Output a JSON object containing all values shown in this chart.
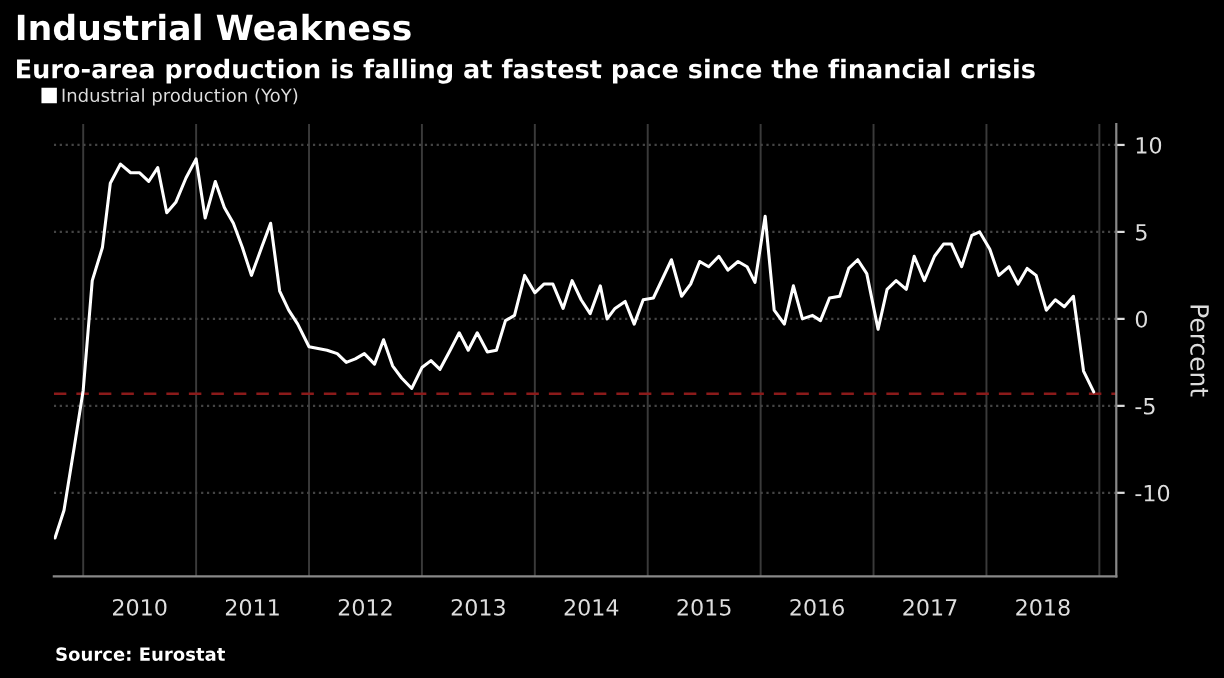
{
  "chart_data": {
    "type": "line",
    "title": "Industrial Weakness",
    "subtitle": "Euro-area production is falling at fastest pace since the financial crisis",
    "ylabel": "Percent",
    "annotations": [
      "Source: Eurostat"
    ],
    "series": [
      {
        "name": "Industrial production (YoY)",
        "color": "#ffffff",
        "x": [
          2009.75,
          2009.83,
          2009.92,
          2010.0,
          2010.08,
          2010.17,
          2010.24,
          2010.33,
          2010.42,
          2010.5,
          2010.58,
          2010.66,
          2010.74,
          2010.82,
          2010.91,
          2011.0,
          2011.08,
          2011.17,
          2011.25,
          2011.33,
          2011.41,
          2011.49,
          2011.58,
          2011.66,
          2011.74,
          2011.82,
          2011.9,
          2012.0,
          2012.08,
          2012.16,
          2012.25,
          2012.33,
          2012.41,
          2012.49,
          2012.58,
          2012.66,
          2012.74,
          2012.82,
          2012.91,
          2013.0,
          2013.08,
          2013.16,
          2013.25,
          2013.33,
          2013.41,
          2013.49,
          2013.58,
          2013.66,
          2013.74,
          2013.82,
          2013.91,
          2014.0,
          2014.08,
          2014.16,
          2014.25,
          2014.33,
          2014.41,
          2014.49,
          2014.58,
          2014.64,
          2014.71,
          2014.8,
          2014.88,
          2014.96,
          2015.05,
          2015.21,
          2015.3,
          2015.38,
          2015.46,
          2015.54,
          2015.63,
          2015.71,
          2015.8,
          2015.88,
          2015.95,
          2016.04,
          2016.12,
          2016.21,
          2016.29,
          2016.37,
          2016.46,
          2016.53,
          2016.61,
          2016.7,
          2016.78,
          2016.86,
          2016.94,
          2017.04,
          2017.12,
          2017.2,
          2017.29,
          2017.36,
          2017.45,
          2017.54,
          2017.62,
          2017.69,
          2017.78,
          2017.87,
          2017.94,
          2018.03,
          2018.11,
          2018.2,
          2018.28,
          2018.36,
          2018.44,
          2018.53,
          2018.61,
          2018.69,
          2018.77,
          2018.86,
          2018.95
        ],
        "values": [
          -12.6,
          -11.0,
          -7.4,
          -4.1,
          2.2,
          4.1,
          7.8,
          8.9,
          8.4,
          8.4,
          7.9,
          8.7,
          6.1,
          6.7,
          8.1,
          9.2,
          5.8,
          7.9,
          6.4,
          5.5,
          4.1,
          2.5,
          4.1,
          5.5,
          1.6,
          0.5,
          -0.3,
          -1.6,
          -1.7,
          -1.8,
          -2.0,
          -2.5,
          -2.3,
          -2.0,
          -2.6,
          -1.2,
          -2.7,
          -3.4,
          -4.0,
          -2.8,
          -2.4,
          -2.9,
          -1.8,
          -0.8,
          -1.8,
          -0.8,
          -1.9,
          -1.8,
          -0.1,
          0.2,
          2.5,
          1.5,
          2.0,
          2.0,
          0.6,
          2.2,
          1.1,
          0.3,
          1.9,
          0.0,
          0.6,
          1.0,
          -0.3,
          1.1,
          1.2,
          3.4,
          1.3,
          2.0,
          3.3,
          3.0,
          3.6,
          2.8,
          3.3,
          3.0,
          2.1,
          5.9,
          0.5,
          -0.3,
          1.9,
          0.0,
          0.2,
          -0.1,
          1.2,
          1.3,
          2.9,
          3.4,
          2.6,
          -0.6,
          1.7,
          2.2,
          1.7,
          3.6,
          2.2,
          3.6,
          4.3,
          4.3,
          3.0,
          4.8,
          5.0,
          4.0,
          2.5,
          3.0,
          2.0,
          2.9,
          2.5,
          0.5,
          1.1,
          0.7,
          1.3,
          -3.0,
          -4.2
        ]
      }
    ],
    "ref_lines": [
      {
        "axis": "y",
        "value": -4.3,
        "color": "#8b1a1a",
        "line_style": "dashed"
      }
    ],
    "xlim": [
      2009.74,
      2019.15
    ],
    "ylim": [
      -14.8,
      11.2
    ],
    "xticks": [
      {
        "value": 2010,
        "label": null
      },
      {
        "value": 2010.5,
        "label": "2010"
      },
      {
        "value": 2011,
        "label": null
      },
      {
        "value": 2011.5,
        "label": "2011"
      },
      {
        "value": 2012,
        "label": null
      },
      {
        "value": 2012.5,
        "label": "2012"
      },
      {
        "value": 2013,
        "label": null
      },
      {
        "value": 2013.5,
        "label": "2013"
      },
      {
        "value": 2014,
        "label": null
      },
      {
        "value": 2014.5,
        "label": "2014"
      },
      {
        "value": 2015,
        "label": null
      },
      {
        "value": 2015.5,
        "label": "2015"
      },
      {
        "value": 2016,
        "label": null
      },
      {
        "value": 2016.5,
        "label": "2016"
      },
      {
        "value": 2017,
        "label": null
      },
      {
        "value": 2017.5,
        "label": "2017"
      },
      {
        "value": 2018,
        "label": null
      },
      {
        "value": 2018.5,
        "label": "2018"
      },
      {
        "value": 2019,
        "label": null
      }
    ],
    "yticks": [
      -10,
      -5,
      0,
      5,
      10
    ],
    "grid": true,
    "legend": "top left",
    "line_style": "solid",
    "marker": "none"
  }
}
